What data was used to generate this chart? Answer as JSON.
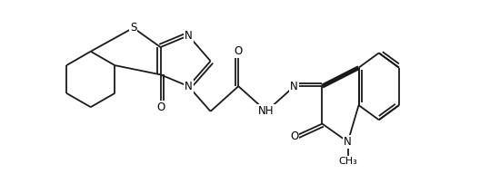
{
  "background_color": "#ffffff",
  "line_color": "#1a1a1a",
  "lw": 1.3,
  "fs": 8.5,
  "xlim": [
    0,
    10.2
  ],
  "ylim": [
    -0.3,
    4.2
  ],
  "figsize": [
    5.28,
    1.92
  ],
  "dpi": 100,
  "dbo": 0.09
}
